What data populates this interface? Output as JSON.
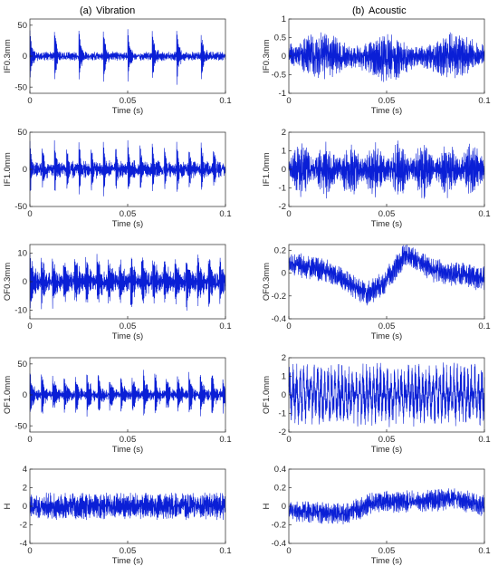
{
  "columns": [
    {
      "label": "(a)",
      "title": "Vibration"
    },
    {
      "label": "(b)",
      "title": "Acoustic"
    }
  ],
  "colors": {
    "signal": "#0a1fd6",
    "signal_dark": "#05103a",
    "axis": "#262626"
  },
  "chart_data": [
    {
      "type": "line",
      "column": "Vibration",
      "ylabel": "IF0.3mm",
      "xlabel": "Time (s)",
      "xlim": [
        0,
        0.1
      ],
      "ylim": [
        -60,
        60
      ],
      "xticks": [
        "0",
        "0.05",
        "0.1"
      ],
      "yticks": [
        "-50",
        "0",
        "50"
      ],
      "signal": {
        "amplitude": 6,
        "impulse_period": 0.0125,
        "impulse_amplitude": 50,
        "impulse_decay": 900,
        "carrier_hz": 3000,
        "modulation_hz": 0,
        "modulation_depth": 0,
        "trend": []
      }
    },
    {
      "type": "line",
      "column": "Acoustic",
      "ylabel": "IF0.3mm",
      "xlabel": "Time (s)",
      "xlim": [
        0,
        0.1
      ],
      "ylim": [
        -1,
        1
      ],
      "yticks": [
        "-1",
        "-0.5",
        "0",
        "0.5",
        "1"
      ],
      "xticks": [
        "0",
        "0.05",
        "0.1"
      ],
      "signal": {
        "amplitude": 0.55,
        "impulse_period": 0,
        "impulse_amplitude": 0,
        "impulse_decay": 0,
        "carrier_hz": 2500,
        "modulation_hz": 30,
        "modulation_depth": 0.55,
        "trend": [
          [
            0,
            0.05
          ],
          [
            0.05,
            -0.05
          ],
          [
            0.1,
            0.05
          ]
        ]
      }
    },
    {
      "type": "line",
      "column": "Vibration",
      "ylabel": "IF1.0mm",
      "xlabel": "Time (s)",
      "xlim": [
        0,
        0.1
      ],
      "ylim": [
        -50,
        50
      ],
      "yticks": [
        "-50",
        "0",
        "50"
      ],
      "xticks": [
        "0",
        "0.05",
        "0.1"
      ],
      "signal": {
        "amplitude": 8,
        "impulse_period": 0.00625,
        "impulse_amplitude": 35,
        "impulse_decay": 700,
        "carrier_hz": 3200,
        "modulation_hz": 0,
        "modulation_depth": 0,
        "trend": []
      }
    },
    {
      "type": "line",
      "column": "Acoustic",
      "ylabel": "IF1.0mm",
      "xlabel": "Time (s)",
      "xlim": [
        0,
        0.1
      ],
      "ylim": [
        -2,
        2
      ],
      "yticks": [
        "-2",
        "-1",
        "0",
        "1",
        "2"
      ],
      "xticks": [
        "0",
        "0.05",
        "0.1"
      ],
      "signal": {
        "amplitude": 1.3,
        "impulse_period": 0,
        "impulse_amplitude": 0,
        "impulse_decay": 0,
        "carrier_hz": 2600,
        "modulation_hz": 80,
        "modulation_depth": 0.6,
        "trend": []
      }
    },
    {
      "type": "line",
      "column": "Vibration",
      "ylabel": "OF0.3mm",
      "xlabel": "Time (s)",
      "xlim": [
        0,
        0.1
      ],
      "ylim": [
        -13,
        13
      ],
      "yticks": [
        "-10",
        "0",
        "10"
      ],
      "xticks": [
        "0",
        "0.05",
        "0.1"
      ],
      "signal": {
        "amplitude": 2.5,
        "impulse_period": 0.0057,
        "impulse_amplitude": 10,
        "impulse_decay": 450,
        "carrier_hz": 2800,
        "modulation_hz": 0,
        "modulation_depth": 0,
        "trend": []
      }
    },
    {
      "type": "line",
      "column": "Acoustic",
      "ylabel": "OF0.3mm",
      "xlabel": "Time (s)",
      "xlim": [
        0,
        0.1
      ],
      "ylim": [
        -0.4,
        0.25
      ],
      "yticks": [
        "-0.4",
        "-0.2",
        "0",
        "0.2"
      ],
      "xticks": [
        "0",
        "0.05",
        "0.1"
      ],
      "signal": {
        "amplitude": 0.09,
        "impulse_period": 0,
        "impulse_amplitude": 0,
        "impulse_decay": 0,
        "carrier_hz": 2400,
        "modulation_hz": 0,
        "modulation_depth": 0,
        "trend": [
          [
            0,
            0.08
          ],
          [
            0.02,
            0.02
          ],
          [
            0.04,
            -0.18
          ],
          [
            0.048,
            -0.1
          ],
          [
            0.06,
            0.17
          ],
          [
            0.075,
            0.02
          ],
          [
            0.1,
            -0.05
          ]
        ]
      }
    },
    {
      "type": "line",
      "column": "Vibration",
      "ylabel": "OF1.0mm",
      "xlabel": "Time (s)",
      "xlim": [
        0,
        0.1
      ],
      "ylim": [
        -60,
        60
      ],
      "yticks": [
        "-50",
        "0",
        "50"
      ],
      "xticks": [
        "0",
        "0.05",
        "0.1"
      ],
      "signal": {
        "amplitude": 7,
        "impulse_period": 0.0058,
        "impulse_amplitude": 40,
        "impulse_decay": 650,
        "carrier_hz": 3000,
        "modulation_hz": 0,
        "modulation_depth": 0,
        "trend": []
      }
    },
    {
      "type": "line",
      "column": "Acoustic",
      "ylabel": "OF1.0mm",
      "xlabel": "Time (s)",
      "xlim": [
        0,
        0.1
      ],
      "ylim": [
        -2,
        2
      ],
      "yticks": [
        "-2",
        "-1",
        "0",
        "1",
        "2"
      ],
      "xticks": [
        "0",
        "0.05",
        "0.1"
      ],
      "signal": {
        "amplitude": 1.4,
        "impulse_period": 0,
        "impulse_amplitude": 0,
        "impulse_decay": 0,
        "carrier_hz": 560,
        "modulation_hz": 0,
        "modulation_depth": 0,
        "trend": []
      }
    },
    {
      "type": "line",
      "column": "Vibration",
      "ylabel": "H",
      "xlabel": "Time (s)",
      "xlim": [
        0,
        0.1
      ],
      "ylim": [
        -4,
        4
      ],
      "yticks": [
        "-4",
        "-2",
        "0",
        "2",
        "4"
      ],
      "xticks": [
        "0",
        "0.05",
        "0.1"
      ],
      "signal": {
        "amplitude": 1.2,
        "impulse_period": 0,
        "impulse_amplitude": 0,
        "impulse_decay": 0,
        "carrier_hz": 3000,
        "modulation_hz": 0,
        "modulation_depth": 0,
        "trend": []
      }
    },
    {
      "type": "line",
      "column": "Acoustic",
      "ylabel": "H",
      "xlabel": "Time (s)",
      "xlim": [
        0,
        0.1
      ],
      "ylim": [
        -0.4,
        0.4
      ],
      "yticks": [
        "-0.4",
        "-0.2",
        "0",
        "0.2",
        "0.4"
      ],
      "xticks": [
        "0",
        "0.05",
        "0.1"
      ],
      "signal": {
        "amplitude": 0.1,
        "impulse_period": 0,
        "impulse_amplitude": 0,
        "impulse_decay": 0,
        "carrier_hz": 2400,
        "modulation_hz": 0,
        "modulation_depth": 0,
        "trend": [
          [
            0,
            -0.05
          ],
          [
            0.03,
            -0.08
          ],
          [
            0.045,
            0.05
          ],
          [
            0.06,
            0.05
          ],
          [
            0.085,
            0.08
          ],
          [
            0.1,
            0.0
          ]
        ]
      }
    }
  ]
}
